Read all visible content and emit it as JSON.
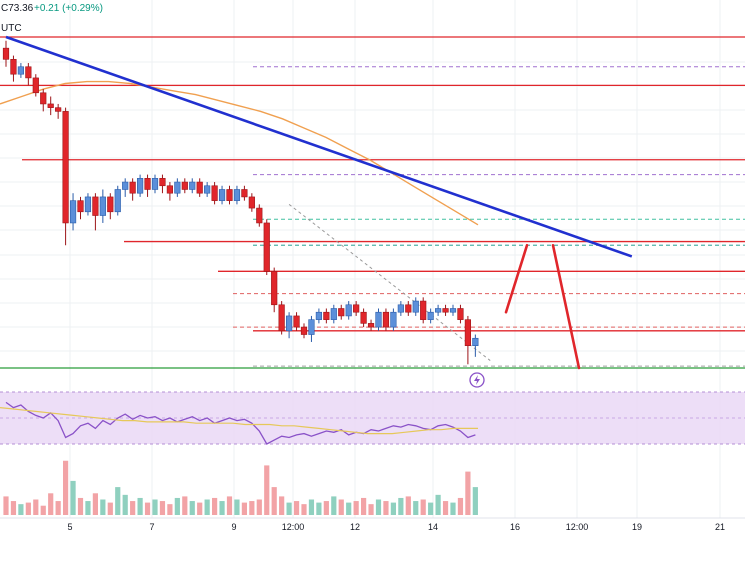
{
  "header": {
    "price": "C73.36",
    "change": "+0.21 (+0.29%)",
    "timezone": "UTC"
  },
  "chart_data": {
    "type": "candlestick",
    "title": "",
    "x_tick_labels": [
      "5",
      "7",
      "9",
      "12:00",
      "12",
      "14",
      "16",
      "12:00",
      "19",
      "21"
    ],
    "candles": [
      [
        78.1,
        77.8,
        78.3,
        77.6
      ],
      [
        77.8,
        77.4,
        77.9,
        77.2
      ],
      [
        77.4,
        77.6,
        77.7,
        77.3
      ],
      [
        77.6,
        77.3,
        77.7,
        77.1
      ],
      [
        77.3,
        76.9,
        77.4,
        76.8
      ],
      [
        76.9,
        76.6,
        77.0,
        76.4
      ],
      [
        76.6,
        76.5,
        76.8,
        76.3
      ],
      [
        76.5,
        76.4,
        76.6,
        76.2
      ],
      [
        76.4,
        73.4,
        76.5,
        72.8
      ],
      [
        73.4,
        74.0,
        74.2,
        73.2
      ],
      [
        74.0,
        73.7,
        74.1,
        73.5
      ],
      [
        73.7,
        74.1,
        74.2,
        73.6
      ],
      [
        74.1,
        73.6,
        74.2,
        73.2
      ],
      [
        73.6,
        74.1,
        74.3,
        73.4
      ],
      [
        74.1,
        73.7,
        74.2,
        73.5
      ],
      [
        73.7,
        74.3,
        74.4,
        73.6
      ],
      [
        74.3,
        74.5,
        74.6,
        74.1
      ],
      [
        74.5,
        74.2,
        74.6,
        74.0
      ],
      [
        74.2,
        74.6,
        74.7,
        74.1
      ],
      [
        74.6,
        74.3,
        74.7,
        74.1
      ],
      [
        74.3,
        74.6,
        74.7,
        74.2
      ],
      [
        74.6,
        74.4,
        74.7,
        74.2
      ],
      [
        74.4,
        74.2,
        74.5,
        74.0
      ],
      [
        74.2,
        74.5,
        74.6,
        74.1
      ],
      [
        74.5,
        74.3,
        74.6,
        74.2
      ],
      [
        74.3,
        74.5,
        74.6,
        74.2
      ],
      [
        74.5,
        74.2,
        74.6,
        74.1
      ],
      [
        74.2,
        74.4,
        74.5,
        74.1
      ],
      [
        74.4,
        74.0,
        74.5,
        73.9
      ],
      [
        74.0,
        74.3,
        74.4,
        73.9
      ],
      [
        74.3,
        74.0,
        74.4,
        73.9
      ],
      [
        74.0,
        74.3,
        74.4,
        73.9
      ],
      [
        74.3,
        74.1,
        74.4,
        74.0
      ],
      [
        74.1,
        73.8,
        74.2,
        73.7
      ],
      [
        73.8,
        73.4,
        73.9,
        73.3
      ],
      [
        73.4,
        72.1,
        73.5,
        72.0
      ],
      [
        72.1,
        71.2,
        72.2,
        71.0
      ],
      [
        71.2,
        70.5,
        71.3,
        70.4
      ],
      [
        70.5,
        70.9,
        71.0,
        70.3
      ],
      [
        70.9,
        70.6,
        71.0,
        70.5
      ],
      [
        70.6,
        70.4,
        70.7,
        70.3
      ],
      [
        70.4,
        70.8,
        70.9,
        70.2
      ],
      [
        70.8,
        71.0,
        71.1,
        70.7
      ],
      [
        71.0,
        70.8,
        71.1,
        70.7
      ],
      [
        70.8,
        71.1,
        71.2,
        70.7
      ],
      [
        71.1,
        70.9,
        71.2,
        70.8
      ],
      [
        70.9,
        71.2,
        71.3,
        70.8
      ],
      [
        71.2,
        71.0,
        71.3,
        70.9
      ],
      [
        71.0,
        70.7,
        71.1,
        70.6
      ],
      [
        70.7,
        70.6,
        70.8,
        70.5
      ],
      [
        70.6,
        71.0,
        71.1,
        70.5
      ],
      [
        71.0,
        70.6,
        71.1,
        70.5
      ],
      [
        70.6,
        71.0,
        71.1,
        70.5
      ],
      [
        71.0,
        71.2,
        71.3,
        70.9
      ],
      [
        71.2,
        71.0,
        71.3,
        70.9
      ],
      [
        71.0,
        71.3,
        71.4,
        70.9
      ],
      [
        71.3,
        70.8,
        71.4,
        70.7
      ],
      [
        70.8,
        71.0,
        71.1,
        70.7
      ],
      [
        71.0,
        71.1,
        71.2,
        70.9
      ],
      [
        71.1,
        71.0,
        71.2,
        70.9
      ],
      [
        71.0,
        71.1,
        71.2,
        70.9
      ],
      [
        71.1,
        70.8,
        71.2,
        70.7
      ],
      [
        70.8,
        70.1,
        70.9,
        69.6
      ],
      [
        70.1,
        70.3,
        70.4,
        69.8
      ]
    ],
    "volumes": [
      12,
      9,
      7,
      8,
      10,
      6,
      14,
      9,
      35,
      22,
      11,
      9,
      14,
      10,
      8,
      18,
      13,
      9,
      11,
      8,
      10,
      9,
      7,
      11,
      12,
      9,
      8,
      10,
      11,
      9,
      12,
      10,
      8,
      9,
      10,
      32,
      18,
      12,
      8,
      9,
      7,
      10,
      8,
      9,
      12,
      10,
      8,
      9,
      11,
      7,
      10,
      9,
      8,
      11,
      12,
      9,
      10,
      8,
      13,
      9,
      8,
      11,
      28,
      18
    ],
    "moving_average": [
      76.6,
      76.8,
      77.0,
      77.15,
      77.2,
      77.2,
      77.15,
      77.05,
      76.95,
      76.85,
      76.7,
      76.55,
      76.4,
      76.2,
      75.95,
      75.7,
      75.4,
      75.1,
      74.75,
      74.4,
      74.05,
      73.7,
      73.35
    ],
    "rsi": [
      62,
      58,
      60,
      55,
      52,
      50,
      54,
      48,
      35,
      38,
      44,
      46,
      42,
      48,
      45,
      50,
      53,
      49,
      52,
      50,
      51,
      48,
      50,
      47,
      49,
      51,
      48,
      50,
      46,
      48,
      50,
      48,
      49,
      46,
      40,
      30,
      33,
      36,
      35,
      37,
      38,
      36,
      38,
      40,
      39,
      41,
      37,
      39,
      38,
      41,
      40,
      42,
      44,
      43,
      45,
      44,
      42,
      41,
      44,
      45,
      43,
      40,
      35,
      37
    ],
    "rsi_signal": [
      58,
      57,
      56,
      55,
      54,
      53,
      52,
      51,
      50,
      49,
      48,
      48,
      47,
      47,
      47,
      47,
      46,
      46,
      46,
      46,
      45,
      45,
      45,
      44,
      44,
      43,
      42,
      41,
      40,
      39,
      38,
      38,
      38,
      39,
      40,
      41,
      41,
      42,
      42,
      42
    ],
    "trendline": {
      "from": [
        0,
        78.4
      ],
      "to": [
        84,
        72.5
      ],
      "color": "#2130cf"
    },
    "dotted_projection": {
      "from": [
        38,
        73.9
      ],
      "to": [
        65,
        69.7
      ]
    },
    "horizontal_levels": [
      78.4,
      77.1,
      75.1,
      72.9,
      72.1,
      70.5
    ],
    "dashed_levels": {
      "purple": [
        77.6,
        74.7,
        72.8
      ],
      "green": [
        73.5,
        72.8
      ],
      "red": [
        71.5,
        70.6
      ],
      "gray": [
        69.55
      ]
    },
    "support_level": 69.5,
    "projected_path": [
      [
        71.0,
        71.6
      ],
      [
        72.8,
        71.3
      ],
      [
        72.8,
        69.5
      ]
    ],
    "colors": {
      "up": "#5b8fd9",
      "down": "#e0262b",
      "vol_up": "#8fd0bf",
      "vol_down": "#f2a3a6",
      "ma": "#f0a050",
      "resistance": "#e0262b",
      "support": "#2a9d3a",
      "rsi": "#8a52c8",
      "rsi_signal": "#e6c85a",
      "rsi_band": "#ead8f6"
    }
  }
}
